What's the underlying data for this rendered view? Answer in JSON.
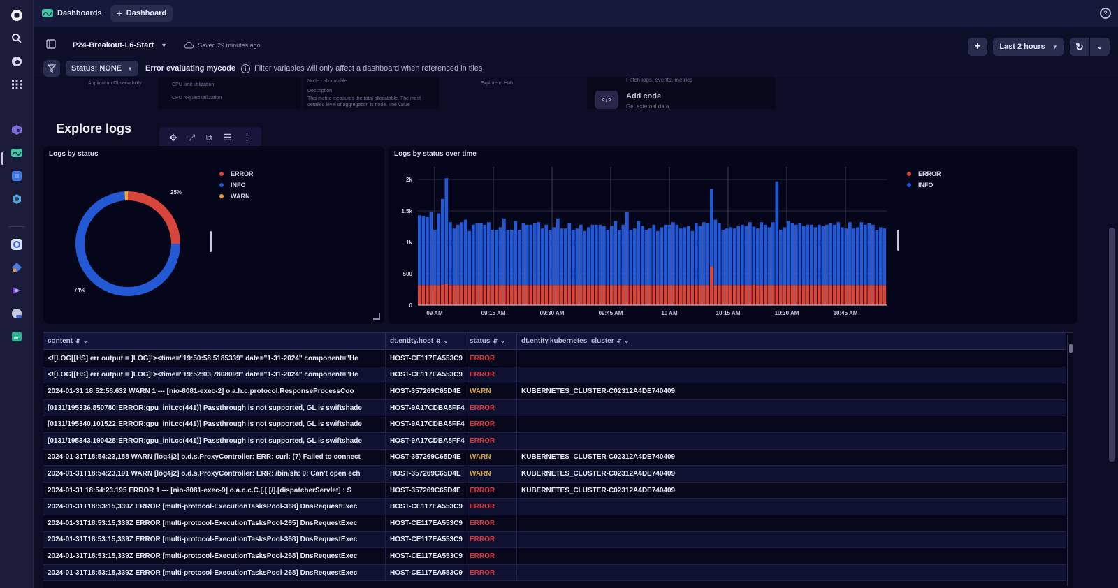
{
  "topbar": {
    "app_name": "Dashboards",
    "new_tab_label": "Dashboard",
    "help_icon": "?"
  },
  "rail": {
    "items": [
      "home",
      "search",
      "hub",
      "apps",
      "cube",
      "dashboards",
      "notebooks",
      "kubernetes",
      "logs",
      "workflows",
      "ai",
      "settings-globe",
      "data"
    ]
  },
  "header": {
    "dashboard_name": "P24-Breakout-L6-Start",
    "saved_status": "Saved 29 minutes ago",
    "timeframe": "Last 2 hours"
  },
  "filters": {
    "status_chip": "Status: NONE",
    "error_label": "Error evaluating mycode",
    "info_text": "Filter variables will only affect a dashboard when referenced in tiles"
  },
  "ghost_overlay": {
    "breadcrumb": "Application Observability",
    "menu_items": [
      "CPU limit utilization",
      "CPU request utilization"
    ],
    "metric_head": "Node - allocatable",
    "description_label": "Description",
    "description_text": "This metric measures the total allocatable. The most detailed level of aggregation is node. The value",
    "explore_in_hub": "Explore in Hub",
    "fetch_text": "Fetch logs, events, metrics",
    "add_code_title": "Add code",
    "add_code_sub": "Get external data"
  },
  "section": {
    "title": "Explore logs"
  },
  "tiles": {
    "donut_title": "Logs by status",
    "bar_title": "Logs by status over time"
  },
  "colors": {
    "error": "#d8453a",
    "info": "#2459d6",
    "warn": "#e0a23a"
  },
  "chart_data": [
    {
      "type": "pie",
      "title": "Logs by status",
      "categories": [
        "ERROR",
        "INFO",
        "WARN"
      ],
      "values": [
        25,
        74,
        1
      ],
      "labels_shown": [
        "25%",
        "74%"
      ],
      "legend": [
        "ERROR",
        "INFO",
        "WARN"
      ],
      "legend_position": "right",
      "donut": true
    },
    {
      "type": "bar",
      "stacked": true,
      "title": "Logs by status over time",
      "xlabel": "",
      "ylabel": "",
      "ylim": [
        0,
        2200
      ],
      "yticks": [
        "0",
        "500",
        "1k",
        "1.5k",
        "2k"
      ],
      "xticks": [
        "09 AM",
        "09:15 AM",
        "09:30 AM",
        "09:45 AM",
        "10 AM",
        "10:15 AM",
        "10:30 AM",
        "10:45 AM"
      ],
      "legend": [
        "ERROR",
        "INFO"
      ],
      "legend_position": "right",
      "grid": true,
      "series": [
        {
          "name": "ERROR",
          "values": [
            320,
            320,
            320,
            320,
            320,
            320,
            330,
            340,
            320,
            320,
            320,
            320,
            320,
            320,
            320,
            320,
            320,
            320,
            320,
            320,
            320,
            320,
            320,
            320,
            320,
            320,
            320,
            320,
            320,
            320,
            320,
            320,
            320,
            320,
            320,
            320,
            320,
            320,
            320,
            320,
            320,
            320,
            320,
            320,
            320,
            320,
            320,
            320,
            320,
            320,
            320,
            320,
            320,
            320,
            320,
            320,
            320,
            320,
            320,
            320,
            320,
            320,
            320,
            320,
            320,
            320,
            320,
            320,
            320,
            320,
            320,
            320,
            320,
            320,
            320,
            320,
            620,
            320,
            320,
            320,
            320,
            320,
            320,
            320,
            320,
            320,
            320,
            330,
            320,
            320,
            320,
            320,
            320,
            320,
            320,
            320,
            320,
            320,
            320,
            320,
            320,
            320,
            320,
            320,
            320,
            320,
            320,
            320,
            320,
            320,
            320,
            320,
            320,
            320,
            320,
            320,
            320,
            320,
            320,
            320,
            320,
            320
          ]
        },
        {
          "name": "INFO",
          "values": [
            1110,
            1100,
            1080,
            1160,
            880,
            1140,
            1360,
            1680,
            1000,
            900,
            960,
            1000,
            1040,
            860,
            960,
            980,
            980,
            960,
            1000,
            880,
            880,
            920,
            1060,
            880,
            880,
            1020,
            880,
            980,
            960,
            960,
            980,
            1000,
            900,
            960,
            880,
            920,
            1060,
            900,
            900,
            980,
            880,
            900,
            960,
            860,
            920,
            960,
            960,
            960,
            940,
            880,
            940,
            1020,
            880,
            960,
            1160,
            880,
            900,
            1020,
            940,
            880,
            900,
            960,
            860,
            920,
            960,
            960,
            1000,
            960,
            900,
            920,
            940,
            860,
            980,
            940,
            1000,
            980,
            1230,
            1040,
            980,
            880,
            900,
            920,
            900,
            940,
            960,
            940,
            1000,
            920,
            900,
            1000,
            960,
            920,
            1000,
            1650,
            880,
            920,
            1020,
            980,
            960,
            980,
            940,
            960,
            960,
            920,
            960,
            940,
            960,
            980,
            960,
            1000,
            920,
            900,
            1000,
            900,
            920,
            1000,
            960,
            980,
            960,
            880,
            920,
            900,
            880,
            940
          ]
        }
      ]
    }
  ],
  "table": {
    "columns": [
      "content",
      "dt.entity.host",
      "status",
      "dt.entity.kubernetes_cluster"
    ],
    "rows": [
      {
        "content": "<![LOG[[HS] err output = ]LOG]!><time=\"19:50:58.5185339\" date=\"1-31-2024\" component=\"He",
        "host": "HOST-CE117EA553C9",
        "status": "ERROR",
        "cluster": ""
      },
      {
        "content": "<![LOG[[HS] err output = ]LOG]!><time=\"19:52:03.7808099\" date=\"1-31-2024\" component=\"He",
        "host": "HOST-CE117EA553C9",
        "status": "ERROR",
        "cluster": ""
      },
      {
        "content": "2024-01-31 18:52:58.632 WARN 1 --- [nio-8081-exec-2] o.a.h.c.protocol.ResponseProcessCoo",
        "host": "HOST-357269C65D4E",
        "status": "WARN",
        "cluster": "KUBERNETES_CLUSTER-C02312A4DE740409"
      },
      {
        "content": "[0131/195336.850780:ERROR:gpu_init.cc(441)] Passthrough is not supported, GL is swiftshade",
        "host": "HOST-9A17CDBA8FF4",
        "status": "ERROR",
        "cluster": ""
      },
      {
        "content": "[0131/195340.101522:ERROR:gpu_init.cc(441)] Passthrough is not supported, GL is swiftshade",
        "host": "HOST-9A17CDBA8FF4",
        "status": "ERROR",
        "cluster": ""
      },
      {
        "content": "[0131/195343.190428:ERROR:gpu_init.cc(441)] Passthrough is not supported, GL is swiftshade",
        "host": "HOST-9A17CDBA8FF4",
        "status": "ERROR",
        "cluster": ""
      },
      {
        "content": "2024-01-31T18:54:23,188 WARN [log4j2] o.d.s.ProxyController: ERR: curl: (7) Failed to connect",
        "host": "HOST-357269C65D4E",
        "status": "WARN",
        "cluster": "KUBERNETES_CLUSTER-C02312A4DE740409"
      },
      {
        "content": "2024-01-31T18:54:23,191 WARN [log4j2] o.d.s.ProxyController: ERR: /bin/sh: 0: Can't open ech",
        "host": "HOST-357269C65D4E",
        "status": "WARN",
        "cluster": "KUBERNETES_CLUSTER-C02312A4DE740409"
      },
      {
        "content": "2024-01-31 18:54:23.195 ERROR 1 --- [nio-8081-exec-9] o.a.c.c.C.[.[.[/].[dispatcherServlet] : S",
        "host": "HOST-357269C65D4E",
        "status": "ERROR",
        "cluster": "KUBERNETES_CLUSTER-C02312A4DE740409"
      },
      {
        "content": "2024-01-31T18:53:15,339Z ERROR [multi-protocol-ExecutionTasksPool-368] DnsRequestExec",
        "host": "HOST-CE117EA553C9",
        "status": "ERROR",
        "cluster": ""
      },
      {
        "content": "2024-01-31T18:53:15,339Z ERROR [multi-protocol-ExecutionTasksPool-265] DnsRequestExec",
        "host": "HOST-CE117EA553C9",
        "status": "ERROR",
        "cluster": ""
      },
      {
        "content": "2024-01-31T18:53:15,339Z ERROR [multi-protocol-ExecutionTasksPool-368] DnsRequestExec",
        "host": "HOST-CE117EA553C9",
        "status": "ERROR",
        "cluster": ""
      },
      {
        "content": "2024-01-31T18:53:15,339Z ERROR [multi-protocol-ExecutionTasksPool-268] DnsRequestExec",
        "host": "HOST-CE117EA553C9",
        "status": "ERROR",
        "cluster": ""
      },
      {
        "content": "2024-01-31T18:53:15,339Z ERROR [multi-protocol-ExecutionTasksPool-268] DnsRequestExec",
        "host": "HOST-CE117EA553C9",
        "status": "ERROR",
        "cluster": ""
      }
    ]
  }
}
